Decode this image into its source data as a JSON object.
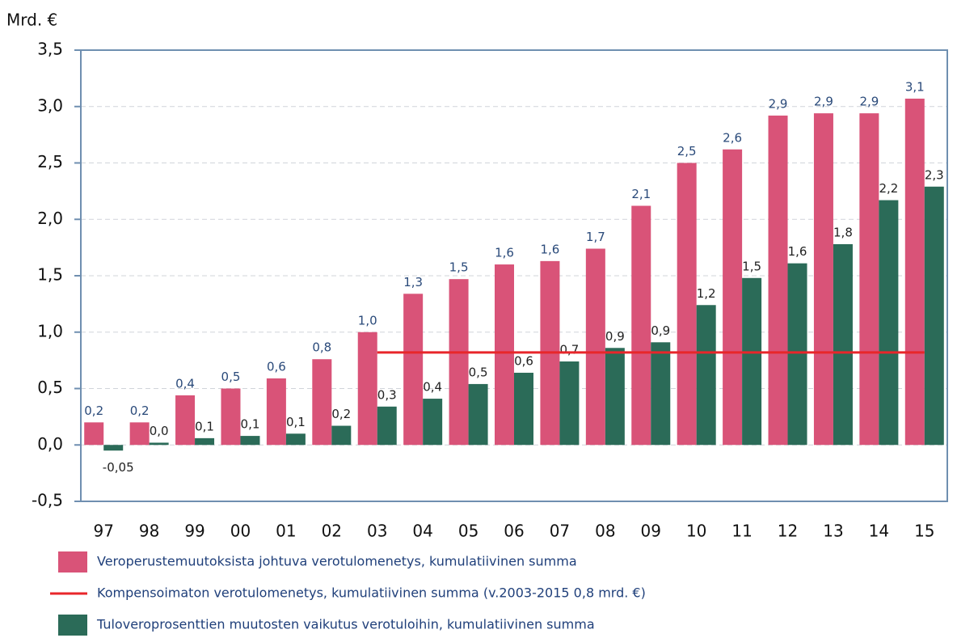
{
  "chart_data": {
    "type": "bar",
    "y_label": "Mrd. €",
    "categories": [
      "97",
      "98",
      "99",
      "00",
      "01",
      "02",
      "03",
      "04",
      "05",
      "06",
      "07",
      "08",
      "09",
      "10",
      "11",
      "12",
      "13",
      "14",
      "15"
    ],
    "series": [
      {
        "name": "Veroperustemuutoksista johtuva verotulomenetys, kumulatiivinen summa",
        "color": "#d95378",
        "kind": "bar",
        "values": [
          0.2,
          0.2,
          0.44,
          0.5,
          0.59,
          0.76,
          1.0,
          1.34,
          1.47,
          1.6,
          1.63,
          1.74,
          2.12,
          2.5,
          2.62,
          2.92,
          2.94,
          2.94,
          3.07
        ],
        "value_labels": [
          "0,2",
          "0,2",
          "0,4",
          "0,5",
          "0,6",
          "0,8",
          "1,0",
          "1,3",
          "1,5",
          "1,6",
          "1,6",
          "1,7",
          "2,1",
          "2,5",
          "2,6",
          "2,9",
          "2,9",
          "2,9",
          "3,1"
        ]
      },
      {
        "name": "Kompensoimaton verotulomenetys, kumulatiivinen summa (v.2003-2015 0,8 mrd. €)",
        "color": "#e8262a",
        "kind": "line",
        "values": [
          null,
          null,
          null,
          null,
          null,
          null,
          0.82,
          0.82,
          0.82,
          0.82,
          0.82,
          0.82,
          0.82,
          0.82,
          0.82,
          0.82,
          0.82,
          0.82,
          0.82
        ]
      },
      {
        "name": "Tuloveroprosenttien muutosten vaikutus verotuloihin, kumulatiivinen summa",
        "color": "#2b6b58",
        "kind": "bar",
        "values": [
          -0.05,
          0.02,
          0.06,
          0.08,
          0.1,
          0.17,
          0.34,
          0.41,
          0.54,
          0.64,
          0.74,
          0.86,
          0.91,
          1.24,
          1.48,
          1.61,
          1.78,
          2.17,
          2.29
        ],
        "value_labels": [
          "-0,05",
          "0,0",
          "0,1",
          "0,1",
          "0,1",
          "0,2",
          "0,3",
          "0,4",
          "0,5",
          "0,6",
          "0,7",
          "0,9",
          "0,9",
          "1,2",
          "1,5",
          "1,6",
          "1,8",
          "2,2",
          "2,3"
        ]
      }
    ],
    "ylim": [
      -0.5,
      3.5
    ],
    "yticks": [
      {
        "value": -0.5,
        "label": "-0,5"
      },
      {
        "value": 0,
        "label": "0,0"
      },
      {
        "value": 0.5,
        "label": "0,5"
      },
      {
        "value": 1,
        "label": "1,0"
      },
      {
        "value": 1.5,
        "label": "1,5"
      },
      {
        "value": 2,
        "label": "2,0"
      },
      {
        "value": 2.5,
        "label": "2,5"
      },
      {
        "value": 3,
        "label": "3,0"
      },
      {
        "value": 3.5,
        "label": "3,5"
      }
    ],
    "grid": true
  }
}
